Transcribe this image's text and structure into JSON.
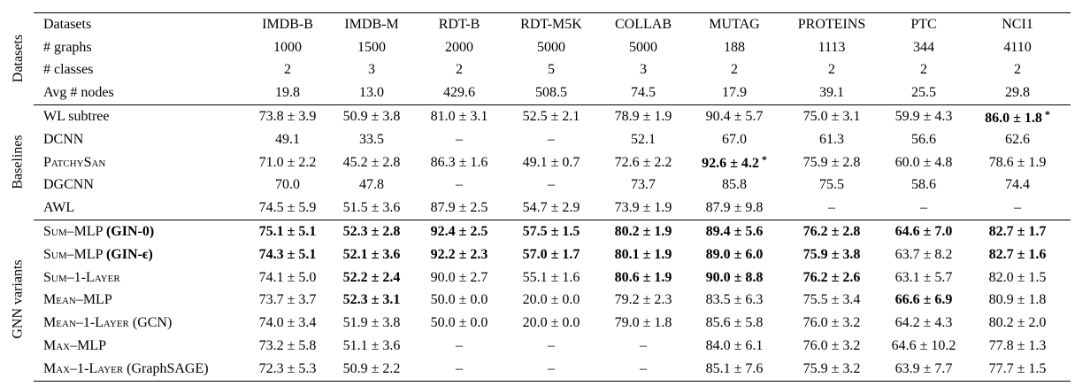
{
  "figure": {
    "header_label": "Datasets",
    "star": "*",
    "columns": [
      "IMDB-B",
      "IMDB-M",
      "RDT-B",
      "RDT-M5K",
      "COLLAB",
      "MUTAG",
      "PROTEINS",
      "PTC",
      "NCI1"
    ],
    "sections": [
      {
        "name": "Datasets",
        "rows": [
          {
            "label": "# graphs",
            "cells": [
              "1000",
              "1500",
              "2000",
              "5000",
              "5000",
              "188",
              "1113",
              "344",
              "4110"
            ]
          },
          {
            "label": "# classes",
            "cells": [
              "2",
              "3",
              "2",
              "5",
              "3",
              "2",
              "2",
              "2",
              "2"
            ]
          },
          {
            "label": "Avg # nodes",
            "cells": [
              "19.8",
              "13.0",
              "429.6",
              "508.5",
              "74.5",
              "17.9",
              "39.1",
              "25.5",
              "29.8"
            ]
          }
        ]
      },
      {
        "name": "Baselines",
        "rows": [
          {
            "label": "WL subtree",
            "cells": [
              "73.8 ± 3.9",
              "50.9 ± 3.8",
              "81.0 ± 3.1",
              "52.5 ± 2.1",
              "78.9 ± 1.9",
              "90.4 ± 5.7",
              "75.0 ± 3.1",
              "59.9 ± 4.3",
              {
                "t": "86.0 ± 1.8",
                "b": true,
                "s": true
              }
            ]
          },
          {
            "label": "DCNN",
            "cells": [
              "49.1",
              "33.5",
              "–",
              "–",
              "52.1",
              "67.0",
              "61.3",
              "56.6",
              "62.6"
            ]
          },
          {
            "label": "PatchySan",
            "sc": true,
            "cells": [
              "71.0 ± 2.2",
              "45.2 ± 2.8",
              "86.3 ± 1.6",
              "49.1 ± 0.7",
              "72.6 ± 2.2",
              {
                "t": "92.6 ± 4.2",
                "b": true,
                "s": true
              },
              "75.9 ± 2.8",
              "60.0 ± 4.8",
              "78.6 ± 1.9"
            ]
          },
          {
            "label": "DGCNN",
            "cells": [
              "70.0",
              "47.8",
              "–",
              "–",
              "73.7",
              "85.8",
              "75.5",
              "58.6",
              "74.4"
            ]
          },
          {
            "label": "AWL",
            "cells": [
              "74.5 ± 5.9",
              "51.5 ± 3.6",
              "87.9 ± 2.5",
              "54.7 ± 2.9",
              "73.9 ± 1.9",
              "87.9 ± 9.8",
              "–",
              "–",
              "–"
            ]
          }
        ]
      },
      {
        "name": "GNN variants",
        "rows": [
          {
            "label": "Sum–MLP ",
            "suffix": "(GIN-0)",
            "suffix_bold": true,
            "sc": true,
            "cells": [
              {
                "t": "75.1 ± 5.1",
                "b": true
              },
              {
                "t": "52.3 ± 2.8",
                "b": true
              },
              {
                "t": "92.4 ± 2.5",
                "b": true
              },
              {
                "t": "57.5 ± 1.5",
                "b": true
              },
              {
                "t": "80.2 ± 1.9",
                "b": true
              },
              {
                "t": "89.4 ± 5.6",
                "b": true
              },
              {
                "t": "76.2 ± 2.8",
                "b": true
              },
              {
                "t": "64.6 ± 7.0",
                "b": true
              },
              {
                "t": "82.7 ± 1.7",
                "b": true
              }
            ]
          },
          {
            "label": "Sum–MLP ",
            "suffix": "(GIN-ϵ)",
            "suffix_bold": true,
            "sc": true,
            "cells": [
              {
                "t": "74.3 ± 5.1",
                "b": true
              },
              {
                "t": "52.1 ± 3.6",
                "b": true
              },
              {
                "t": "92.2 ± 2.3",
                "b": true
              },
              {
                "t": "57.0 ± 1.7",
                "b": true
              },
              {
                "t": "80.1 ± 1.9",
                "b": true
              },
              {
                "t": "89.0 ± 6.0",
                "b": true
              },
              {
                "t": "75.9 ± 3.8",
                "b": true
              },
              "63.7 ± 8.2",
              {
                "t": "82.7 ± 1.6",
                "b": true
              }
            ]
          },
          {
            "label": "Sum–1-Layer",
            "sc": true,
            "cells": [
              "74.1 ± 5.0",
              {
                "t": "52.2 ± 2.4",
                "b": true
              },
              "90.0 ± 2.7",
              "55.1 ± 1.6",
              {
                "t": "80.6 ± 1.9",
                "b": true
              },
              {
                "t": "90.0 ± 8.8",
                "b": true
              },
              {
                "t": "76.2 ± 2.6",
                "b": true
              },
              "63.1 ± 5.7",
              "82.0 ± 1.5"
            ]
          },
          {
            "label": "Mean–MLP",
            "sc": true,
            "cells": [
              "73.7 ± 3.7",
              {
                "t": "52.3 ± 3.1",
                "b": true
              },
              "50.0 ± 0.0",
              "20.0 ± 0.0",
              "79.2 ± 2.3",
              "83.5 ± 6.3",
              "75.5 ± 3.4",
              {
                "t": "66.6 ± 6.9",
                "b": true
              },
              "80.9 ± 1.8"
            ]
          },
          {
            "label": "Mean–1-Layer ",
            "suffix": "(GCN)",
            "sc": true,
            "cells": [
              "74.0 ± 3.4",
              "51.9 ± 3.8",
              "50.0 ± 0.0",
              "20.0 ± 0.0",
              "79.0 ± 1.8",
              "85.6 ± 5.8",
              "76.0 ± 3.2",
              "64.2 ± 4.3",
              "80.2 ± 2.0"
            ]
          },
          {
            "label": "Max–MLP",
            "sc": true,
            "cells": [
              "73.2 ± 5.8",
              "51.1 ± 3.6",
              "–",
              "–",
              "–",
              "84.0 ± 6.1",
              "76.0 ± 3.2",
              "64.6 ± 10.2",
              "77.8 ± 1.3"
            ]
          },
          {
            "label": "Max–1-Layer ",
            "suffix": "(GraphSAGE)",
            "sc": true,
            "cells": [
              "72.3 ± 5.3",
              "50.9 ± 2.2",
              "–",
              "–",
              "–",
              "85.1 ± 7.6",
              "75.9 ± 3.2",
              "63.9 ± 7.7",
              "77.7 ± 1.5"
            ]
          }
        ]
      }
    ]
  }
}
